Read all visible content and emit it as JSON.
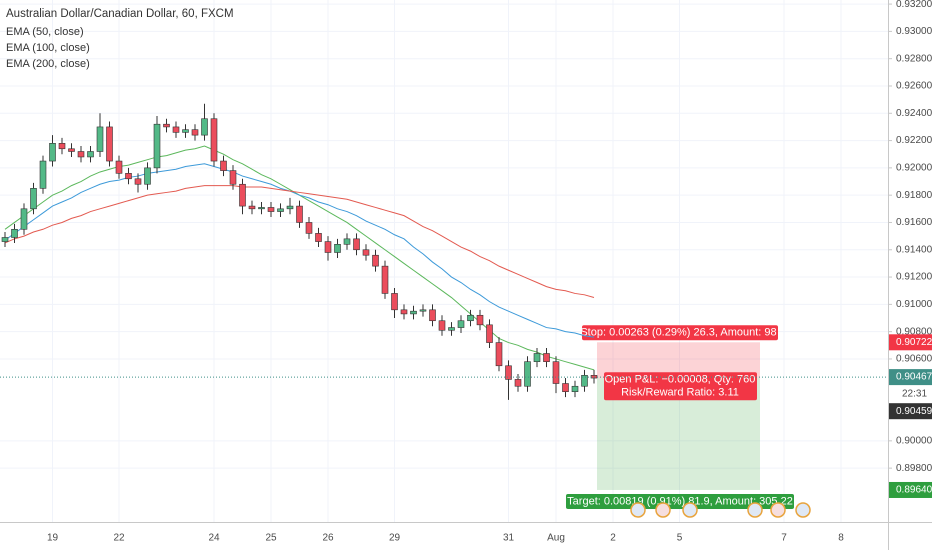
{
  "chart_data": {
    "type": "candlestick",
    "title": "Australian Dollar/Canadian Dollar, 60, FXCM",
    "categories": [
      null,
      null,
      null,
      null,
      null,
      "19",
      null,
      null,
      null,
      null,
      null,
      null,
      "22",
      null,
      null,
      null,
      null,
      null,
      null,
      null,
      null,
      null,
      "24",
      null,
      null,
      null,
      null,
      null,
      "25",
      null,
      null,
      null,
      null,
      null,
      "26",
      null,
      null,
      null,
      null,
      null,
      null,
      "29",
      null,
      null,
      null,
      null,
      null,
      null,
      null,
      null,
      null,
      null,
      null,
      "31",
      null,
      null,
      null,
      null,
      "Aug",
      null,
      null,
      null,
      null,
      null,
      "2",
      null,
      null,
      null,
      null,
      null,
      null,
      "5",
      null,
      null,
      null,
      null,
      null,
      null,
      null,
      null,
      null,
      null,
      "7",
      null,
      null,
      null,
      null,
      null,
      "8",
      null,
      null
    ],
    "up_color": "#53b987",
    "down_color": "#eb4d5c",
    "open": [
      0.9146,
      0.9149,
      0.9155,
      0.917,
      0.9185,
      0.9205,
      0.9218,
      0.9214,
      0.9212,
      0.9208,
      0.9212,
      0.923,
      0.9205,
      0.9196,
      0.9192,
      0.9188,
      0.92,
      0.9232,
      0.923,
      0.9226,
      0.9228,
      0.9224,
      0.9236,
      0.9205,
      0.9198,
      0.9188,
      0.9172,
      0.917,
      0.9171,
      0.9168,
      0.917,
      0.9172,
      0.916,
      0.9152,
      0.9146,
      0.9138,
      0.9144,
      0.9148,
      0.914,
      0.9136,
      0.9128,
      0.9108,
      0.9096,
      0.9093,
      0.9095,
      0.9096,
      0.9088,
      0.9081,
      0.9083,
      0.9088,
      0.9092,
      0.9085,
      0.9072,
      0.9055,
      0.9045,
      0.904,
      0.9058,
      0.9064,
      0.9058,
      0.9042,
      0.9036,
      0.904,
      0.9048,
      null,
      null,
      null,
      null,
      null,
      null,
      null,
      null,
      null,
      null,
      null,
      null,
      null,
      null,
      null,
      null,
      null,
      null,
      null,
      null,
      null,
      null,
      null,
      null,
      null,
      null,
      null,
      null
    ],
    "high": [
      0.9153,
      0.9159,
      0.9174,
      0.9189,
      0.9209,
      0.9224,
      0.9222,
      0.9218,
      0.9216,
      0.9216,
      0.924,
      0.9234,
      0.9209,
      0.92,
      0.9196,
      0.9204,
      0.9238,
      0.9236,
      0.9234,
      0.9232,
      0.9232,
      0.9247,
      0.924,
      0.9209,
      0.9202,
      0.9192,
      0.9176,
      0.9175,
      0.9175,
      0.9174,
      0.9178,
      0.9176,
      0.9164,
      0.9156,
      0.915,
      0.9148,
      0.9152,
      0.9152,
      0.9144,
      0.914,
      0.9132,
      0.9112,
      0.91,
      0.9099,
      0.91,
      0.91,
      0.9092,
      0.9087,
      0.9092,
      0.9096,
      0.9096,
      0.9089,
      0.9076,
      0.9059,
      0.9049,
      0.9062,
      0.9068,
      0.9068,
      0.9062,
      0.9046,
      0.9044,
      0.9052,
      0.9052,
      null,
      null,
      null,
      null,
      null,
      null,
      null,
      null,
      null,
      null,
      null,
      null,
      null,
      null,
      null,
      null,
      null,
      null,
      null,
      null,
      null,
      null,
      null,
      null,
      null,
      null,
      null,
      null
    ],
    "low": [
      0.9142,
      0.9145,
      0.9151,
      0.9166,
      0.9181,
      0.9201,
      0.921,
      0.9208,
      0.9204,
      0.9204,
      0.9208,
      0.9201,
      0.9192,
      0.9188,
      0.9182,
      0.9184,
      0.9196,
      0.9226,
      0.9222,
      0.9222,
      0.922,
      0.922,
      0.9201,
      0.9194,
      0.9184,
      0.9166,
      0.9166,
      0.9166,
      0.9164,
      0.9164,
      0.9166,
      0.9156,
      0.9148,
      0.9142,
      0.9132,
      0.9134,
      0.914,
      0.9136,
      0.9132,
      0.9124,
      0.9104,
      0.909,
      0.9089,
      0.9089,
      0.9091,
      0.9084,
      0.9077,
      0.9077,
      0.9079,
      0.9084,
      0.9081,
      0.9068,
      0.9051,
      0.903,
      0.9036,
      0.9036,
      0.9054,
      0.9054,
      0.9035,
      0.9032,
      0.9032,
      0.9036,
      0.9042,
      null,
      null,
      null,
      null,
      null,
      null,
      null,
      null,
      null,
      null,
      null,
      null,
      null,
      null,
      null,
      null,
      null,
      null,
      null,
      null,
      null,
      null,
      null,
      null,
      null,
      null,
      null,
      null
    ],
    "close": [
      0.9149,
      0.9155,
      0.917,
      0.9185,
      0.9205,
      0.9218,
      0.9214,
      0.9212,
      0.9208,
      0.9212,
      0.923,
      0.9205,
      0.9196,
      0.9192,
      0.9188,
      0.92,
      0.9232,
      0.923,
      0.9226,
      0.9228,
      0.9224,
      0.9236,
      0.9205,
      0.9198,
      0.9188,
      0.9172,
      0.917,
      0.9171,
      0.9168,
      0.917,
      0.9172,
      0.916,
      0.9152,
      0.9146,
      0.9138,
      0.9144,
      0.9148,
      0.914,
      0.9136,
      0.9128,
      0.9108,
      0.9096,
      0.9093,
      0.9095,
      0.9096,
      0.9088,
      0.9081,
      0.9083,
      0.9088,
      0.9092,
      0.9085,
      0.9072,
      0.9055,
      0.9045,
      0.904,
      0.9058,
      0.9064,
      0.9058,
      0.9042,
      0.9036,
      0.904,
      0.9048,
      0.9046,
      null,
      null,
      null,
      null,
      null,
      null,
      null,
      null,
      null,
      null,
      null,
      null,
      null,
      null,
      null,
      null,
      null,
      null,
      null,
      null,
      null,
      null,
      null,
      null,
      null,
      null,
      null,
      null
    ],
    "series": [
      {
        "name": "EMA (50, close)",
        "color": "#5cb85c",
        "values": [
          0.9155,
          0.916,
          0.9165,
          0.917,
          0.9175,
          0.918,
          0.9183,
          0.9187,
          0.919,
          0.9194,
          0.9197,
          0.9199,
          0.9201,
          0.9202,
          0.9204,
          0.9206,
          0.9208,
          0.9209,
          0.9211,
          0.9213,
          0.9214,
          0.9216,
          0.9213,
          0.921,
          0.9206,
          0.9203,
          0.9199,
          0.9195,
          0.9192,
          0.9188,
          0.9184,
          0.918,
          0.9176,
          0.9172,
          0.9168,
          0.9164,
          0.916,
          0.9155,
          0.915,
          0.9145,
          0.914,
          0.9135,
          0.913,
          0.9125,
          0.912,
          0.9115,
          0.911,
          0.9105,
          0.9099,
          0.9093,
          0.9087,
          0.9081,
          0.9075,
          0.9072,
          0.907,
          0.9067,
          0.9065,
          0.9062,
          0.906,
          0.9058,
          0.9056,
          0.9054,
          0.9052,
          null,
          null,
          null,
          null,
          null,
          null,
          null,
          null,
          null,
          null,
          null,
          null,
          null,
          null,
          null,
          null,
          null,
          null,
          null,
          null,
          null,
          null,
          null,
          null,
          null,
          null,
          null,
          null
        ]
      },
      {
        "name": "EMA (100, close)",
        "color": "#3d9ad9",
        "values": [
          0.9147,
          0.9152,
          0.9157,
          0.9162,
          0.9167,
          0.9172,
          0.9175,
          0.9178,
          0.9182,
          0.9185,
          0.9188,
          0.919,
          0.9191,
          0.9193,
          0.9194,
          0.9196,
          0.9197,
          0.9198,
          0.9199,
          0.9201,
          0.9202,
          0.9203,
          0.9201,
          0.9199,
          0.9197,
          0.9194,
          0.9192,
          0.919,
          0.9188,
          0.9185,
          0.9183,
          0.918,
          0.9178,
          0.9175,
          0.9173,
          0.917,
          0.9168,
          0.9165,
          0.9161,
          0.9158,
          0.9155,
          0.9151,
          0.9148,
          0.9142,
          0.9137,
          0.9131,
          0.9126,
          0.912,
          0.9116,
          0.9111,
          0.9107,
          0.9102,
          0.9098,
          0.9095,
          0.9092,
          0.9089,
          0.9086,
          0.9083,
          0.9082,
          0.908,
          0.9079,
          0.9077,
          0.9076,
          null,
          null,
          null,
          null,
          null,
          null,
          null,
          null,
          null,
          null,
          null,
          null,
          null,
          null,
          null,
          null,
          null,
          null,
          null,
          null,
          null,
          null,
          null,
          null,
          null,
          null,
          null,
          null
        ]
      },
      {
        "name": "EMA (200, close)",
        "color": "#e35a50",
        "values": [
          0.9145,
          0.9148,
          0.915,
          0.9153,
          0.9155,
          0.9158,
          0.916,
          0.9163,
          0.9165,
          0.9168,
          0.917,
          0.9172,
          0.9174,
          0.9176,
          0.9178,
          0.918,
          0.9181,
          0.9182,
          0.9183,
          0.9185,
          0.9186,
          0.9187,
          0.9187,
          0.9187,
          0.9187,
          0.9186,
          0.9186,
          0.9186,
          0.9185,
          0.9184,
          0.9183,
          0.9182,
          0.9181,
          0.918,
          0.9179,
          0.9178,
          0.9177,
          0.9175,
          0.9173,
          0.9171,
          0.9169,
          0.9167,
          0.9165,
          0.9161,
          0.9157,
          0.9154,
          0.915,
          0.9146,
          0.9142,
          0.9139,
          0.9135,
          0.9132,
          0.9128,
          0.9125,
          0.9122,
          0.9119,
          0.9116,
          0.9113,
          0.9111,
          0.911,
          0.9108,
          0.9107,
          0.9105,
          null,
          null,
          null,
          null,
          null,
          null,
          null,
          null,
          null,
          null,
          null,
          null,
          null,
          null,
          null,
          null,
          null,
          null,
          null,
          null,
          null,
          null,
          null,
          null,
          null,
          null,
          null,
          null
        ]
      }
    ],
    "ylim": [
      0.8942,
      0.9323
    ],
    "yticks": [
      {
        "value": 0.932,
        "label": "0.93200"
      },
      {
        "value": 0.93,
        "label": "0.93000"
      },
      {
        "value": 0.928,
        "label": "0.92800"
      },
      {
        "value": 0.926,
        "label": "0.92600"
      },
      {
        "value": 0.924,
        "label": "0.92400"
      },
      {
        "value": 0.922,
        "label": "0.92200"
      },
      {
        "value": 0.92,
        "label": "0.92000"
      },
      {
        "value": 0.918,
        "label": "0.91800"
      },
      {
        "value": 0.916,
        "label": "0.91600"
      },
      {
        "value": 0.914,
        "label": "0.91400"
      },
      {
        "value": 0.912,
        "label": "0.91200"
      },
      {
        "value": 0.91,
        "label": "0.91000"
      },
      {
        "value": 0.908,
        "label": "0.90800"
      },
      {
        "value": 0.906,
        "label": "0.90600"
      },
      {
        "value": 0.9,
        "label": "0.90000"
      },
      {
        "value": 0.898,
        "label": "0.89800"
      }
    ],
    "grid": true,
    "last_price": {
      "value": 0.90467,
      "label": "0.90467"
    },
    "countdown": "22:31",
    "position": {
      "stop": {
        "value": 0.90722,
        "label": "0.90722"
      },
      "entry": {
        "value": 0.90459,
        "label": "0.90459"
      },
      "target": {
        "value": 0.8964,
        "label": "0.89640"
      },
      "stop_text": "Stop: 0.00263 (0.29%) 26.3, Amount: 98",
      "pnl_text": "Open P&L: −0.00008, Qty: 760",
      "rr_text": "Risk/Reward Ratio: 3.11",
      "target_text": "Target: 0.00819 (0.91%) 81.9, Amount: 305.22"
    }
  }
}
